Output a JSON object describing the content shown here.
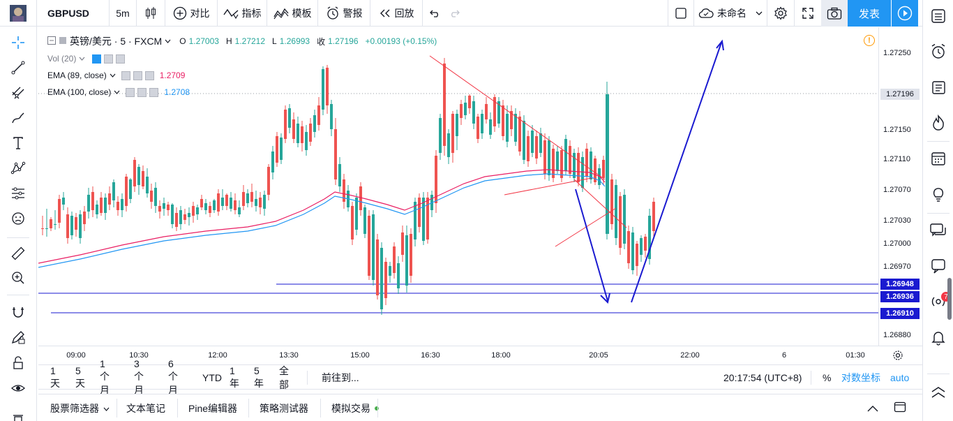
{
  "topbar": {
    "symbol": "GBPUSD",
    "interval": "5m",
    "compare_label": "对比",
    "indicators_label": "指标",
    "templates_label": "模板",
    "alert_label": "警报",
    "replay_label": "回放",
    "layout_name": "未命名",
    "publish_label": "发表"
  },
  "legend": {
    "symbol_title": "英镑/美元 · 5 · FXCM",
    "o_label": "O",
    "o_value": "1.27003",
    "h_label": "H",
    "h_value": "1.27212",
    "l_label": "L",
    "l_value": "1.26993",
    "c_label": "收",
    "c_value": "1.27196",
    "change": "+0.00193 (+0.15%)",
    "vol_label": "Vol (20)",
    "ema89_label": "EMA (89, close)",
    "ema89_value": "1.2709",
    "ema100_label": "EMA (100, close)",
    "ema100_value": "1.2708"
  },
  "colors": {
    "up": "#26a69a",
    "down": "#ef5350",
    "ema89": "#e91e63",
    "ema100": "#2196f3",
    "drawing_red": "#f23645",
    "drawing_blue": "#1a1ad0",
    "accent": "#2196f3"
  },
  "price_axis": {
    "ticks": [
      "1.27250",
      "1.27150",
      "1.27110",
      "1.27070",
      "1.27030",
      "1.27000",
      "1.26970",
      "1.26880"
    ],
    "current_price": "1.27196",
    "h_line_labels": [
      "1.26948",
      "1.26936",
      "1.26910"
    ]
  },
  "time_axis": {
    "ticks": [
      "09:00",
      "10:30",
      "12:00",
      "13:30",
      "15:00",
      "16:30",
      "18:00",
      "20:05",
      "22:00",
      "6",
      "01:30"
    ]
  },
  "bottom_bar": {
    "ranges": [
      "1天",
      "5天",
      "1个月",
      "3个月",
      "6个月",
      "YTD",
      "1年",
      "5年",
      "全部"
    ],
    "goto_label": "前往到...",
    "clock": "20:17:54 (UTC+8)",
    "percent_label": "%",
    "log_label": "对数坐标",
    "auto_label": "auto"
  },
  "panel_tabs": [
    "股票筛选器",
    "文本笔记",
    "Pine编辑器",
    "策略测试器",
    "模拟交易"
  ],
  "right_toolbar": {
    "notification_count": "7"
  },
  "left_toolbar": {
    "icons": [
      "crosshair-icon",
      "trend-line-icon",
      "pitchfork-icon",
      "brush-icon",
      "text-icon",
      "pattern-icon",
      "forecast-icon",
      "emoji-icon",
      "ruler-icon",
      "zoom-in-icon",
      "magnet-icon",
      "lock-drawing-icon",
      "lock-icon",
      "eye-icon"
    ]
  }
}
